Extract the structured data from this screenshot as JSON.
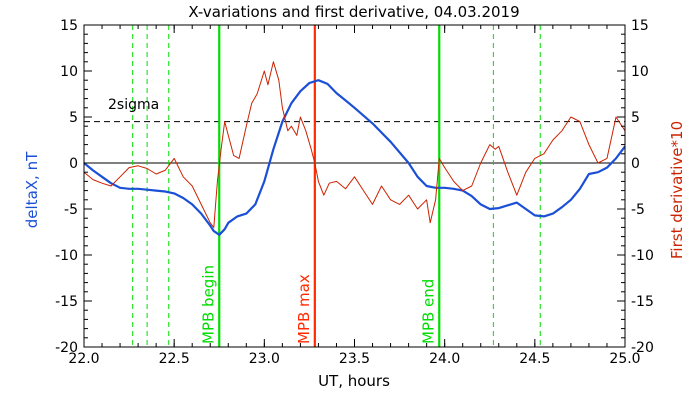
{
  "chart_data": {
    "type": "line",
    "title": "X-variations and first derivative, 04.03.2019",
    "xlabel": "UT, hours",
    "ylabel_left": "deltaX, nT",
    "ylabel_right": "First derivative*10",
    "xlim": [
      22.0,
      25.0
    ],
    "ylim_left": [
      -20,
      15
    ],
    "ylim_right": [
      -20,
      15
    ],
    "x_ticks": [
      "22.0",
      "22.5",
      "23.0",
      "23.5",
      "24.0",
      "24.5",
      "25.0"
    ],
    "y_ticks": [
      "15",
      "10",
      "5",
      "0",
      "-5",
      "-10",
      "-15",
      "-20"
    ],
    "zero_line": 0,
    "sigma_line": {
      "label": "2sigma",
      "value": 4.5
    },
    "vlines": [
      {
        "x": 22.75,
        "label": "MPB begin",
        "color": "#00dd00",
        "style": "solid"
      },
      {
        "x": 23.28,
        "label": "MPB max",
        "color": "#ff2a00",
        "style": "solid"
      },
      {
        "x": 23.97,
        "label": "MPB end",
        "color": "#00dd00",
        "style": "solid"
      },
      {
        "x": 22.27,
        "color": "#00dd00",
        "style": "dashed"
      },
      {
        "x": 22.35,
        "color": "#00dd00",
        "style": "dashed"
      },
      {
        "x": 22.47,
        "color": "#00dd00",
        "style": "dashed"
      },
      {
        "x": 24.27,
        "color": "#00dd00",
        "style": "dashed"
      },
      {
        "x": 24.53,
        "color": "#00dd00",
        "style": "dashed"
      }
    ],
    "series": [
      {
        "color": "#1a4fd6",
        "axis": "left",
        "x": [
          22.0,
          22.05,
          22.1,
          22.15,
          22.2,
          22.25,
          22.3,
          22.35,
          22.4,
          22.45,
          22.5,
          22.55,
          22.6,
          22.65,
          22.7,
          22.72,
          22.75,
          22.78,
          22.8,
          22.85,
          22.9,
          22.95,
          23.0,
          23.05,
          23.1,
          23.15,
          23.2,
          23.25,
          23.3,
          23.35,
          23.4,
          23.45,
          23.5,
          23.6,
          23.7,
          23.8,
          23.85,
          23.9,
          23.95,
          24.0,
          24.05,
          24.1,
          24.15,
          24.2,
          24.25,
          24.3,
          24.35,
          24.4,
          24.45,
          24.5,
          24.55,
          24.6,
          24.65,
          24.7,
          24.75,
          24.8,
          24.85,
          24.9,
          24.95,
          25.0
        ],
        "values": [
          0.0,
          -0.8,
          -1.5,
          -2.2,
          -2.7,
          -2.8,
          -2.8,
          -2.9,
          -3.0,
          -3.1,
          -3.3,
          -3.8,
          -4.5,
          -5.5,
          -6.8,
          -7.4,
          -7.8,
          -7.2,
          -6.5,
          -5.8,
          -5.5,
          -4.5,
          -2.0,
          1.5,
          4.5,
          6.5,
          7.8,
          8.7,
          9.0,
          8.6,
          7.6,
          6.8,
          6.0,
          4.3,
          2.3,
          0.0,
          -1.5,
          -2.5,
          -2.7,
          -2.7,
          -2.8,
          -3.0,
          -3.6,
          -4.5,
          -5.0,
          -4.9,
          -4.6,
          -4.3,
          -5.0,
          -5.7,
          -5.8,
          -5.5,
          -4.8,
          -4.0,
          -2.8,
          -1.2,
          -1.0,
          -0.5,
          0.5,
          1.8
        ]
      },
      {
        "color": "#cc2200",
        "axis": "right",
        "x": [
          22.0,
          22.05,
          22.1,
          22.15,
          22.2,
          22.25,
          22.3,
          22.35,
          22.4,
          22.45,
          22.5,
          22.55,
          22.6,
          22.65,
          22.7,
          22.72,
          22.74,
          22.76,
          22.78,
          22.8,
          22.83,
          22.86,
          22.9,
          22.93,
          22.96,
          23.0,
          23.02,
          23.05,
          23.08,
          23.1,
          23.13,
          23.15,
          23.18,
          23.2,
          23.23,
          23.26,
          23.28,
          23.3,
          23.33,
          23.36,
          23.4,
          23.45,
          23.5,
          23.55,
          23.6,
          23.65,
          23.7,
          23.75,
          23.8,
          23.85,
          23.9,
          23.92,
          23.95,
          23.97,
          24.0,
          24.05,
          24.1,
          24.15,
          24.2,
          24.25,
          24.28,
          24.3,
          24.35,
          24.4,
          24.45,
          24.5,
          24.55,
          24.6,
          24.65,
          24.7,
          24.75,
          24.8,
          24.85,
          24.9,
          24.95,
          25.0
        ],
        "values": [
          -1.0,
          -1.8,
          -2.2,
          -2.5,
          -1.5,
          -0.5,
          -0.3,
          -0.6,
          -1.2,
          -0.8,
          0.5,
          -1.5,
          -2.5,
          -4.5,
          -6.5,
          -7.0,
          -2.0,
          1.5,
          4.5,
          3.0,
          0.8,
          0.5,
          4.0,
          6.5,
          7.5,
          10.0,
          8.5,
          11.0,
          9.0,
          6.0,
          3.5,
          4.0,
          3.0,
          5.0,
          3.5,
          1.5,
          0.0,
          -2.0,
          -3.5,
          -2.2,
          -2.0,
          -2.8,
          -1.5,
          -3.0,
          -4.5,
          -2.5,
          -4.0,
          -4.5,
          -3.5,
          -5.0,
          -4.0,
          -6.5,
          -4.0,
          0.5,
          -0.5,
          -2.0,
          -3.0,
          -2.5,
          0.0,
          2.0,
          1.5,
          1.8,
          -1.0,
          -3.5,
          -1.0,
          0.5,
          1.0,
          2.5,
          3.5,
          5.0,
          4.5,
          2.0,
          0.0,
          0.5,
          5.0,
          3.5
        ]
      }
    ],
    "grid": false
  }
}
